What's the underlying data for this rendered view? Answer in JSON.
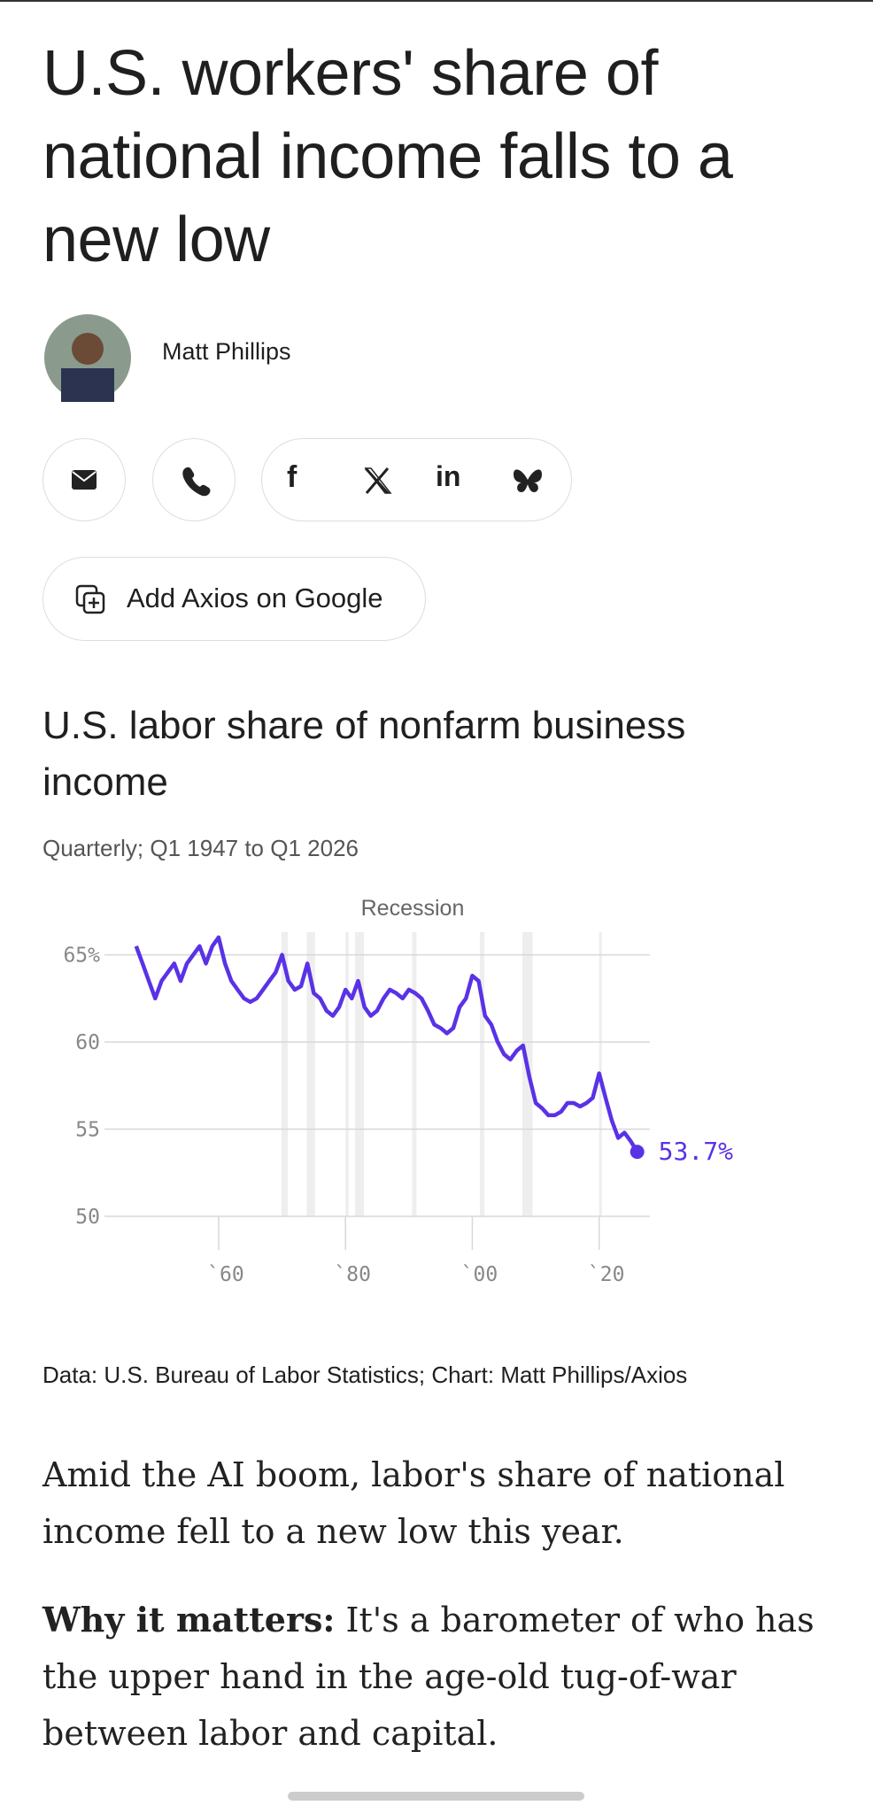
{
  "header": {
    "title": "U.S. workers' share of national income falls to a new low"
  },
  "byline": {
    "author": "Matt Phillips"
  },
  "share": {
    "facebook": "f",
    "linkedin": "in"
  },
  "buttons": {
    "add_google": "Add Axios on Google"
  },
  "chart_data": {
    "type": "line",
    "title": "U.S. labor share of nonfarm business income",
    "subtitle": "Quarterly; Q1 1947 to Q1 2026",
    "x": [
      1947,
      1948,
      1949,
      1950,
      1951,
      1952,
      1953,
      1954,
      1955,
      1956,
      1957,
      1958,
      1959,
      1960,
      1961,
      1962,
      1963,
      1964,
      1965,
      1966,
      1967,
      1968,
      1969,
      1970,
      1971,
      1972,
      1973,
      1974,
      1975,
      1976,
      1977,
      1978,
      1979,
      1980,
      1981,
      1982,
      1983,
      1984,
      1985,
      1986,
      1987,
      1988,
      1989,
      1990,
      1991,
      1992,
      1993,
      1994,
      1995,
      1996,
      1997,
      1998,
      1999,
      2000,
      2001,
      2002,
      2003,
      2004,
      2005,
      2006,
      2007,
      2008,
      2009,
      2010,
      2011,
      2012,
      2013,
      2014,
      2015,
      2016,
      2017,
      2018,
      2019,
      2020,
      2021,
      2022,
      2023,
      2024,
      2025,
      2026
    ],
    "values": [
      65.5,
      64.5,
      63.5,
      62.5,
      63.5,
      64.0,
      64.5,
      63.5,
      64.5,
      65.0,
      65.5,
      64.5,
      65.5,
      66.0,
      64.5,
      63.5,
      63.0,
      62.5,
      62.3,
      62.5,
      63.0,
      63.5,
      64.0,
      65.0,
      63.5,
      63.0,
      63.2,
      64.5,
      62.8,
      62.5,
      61.8,
      61.5,
      62.0,
      63.0,
      62.5,
      63.5,
      62.0,
      61.5,
      61.8,
      62.5,
      63.0,
      62.8,
      62.5,
      63.0,
      62.8,
      62.5,
      61.8,
      61.0,
      60.8,
      60.5,
      60.8,
      62.0,
      62.5,
      63.8,
      63.5,
      61.5,
      61.0,
      60.0,
      59.3,
      59.0,
      59.5,
      59.8,
      58.0,
      56.5,
      56.2,
      55.8,
      55.8,
      56.0,
      56.5,
      56.5,
      56.3,
      56.5,
      56.8,
      58.2,
      56.8,
      55.5,
      54.5,
      54.8,
      54.3,
      53.7
    ],
    "value_labels": [
      null,
      null,
      null,
      null,
      null,
      null,
      null,
      null,
      null,
      null,
      null,
      null,
      null,
      null,
      null,
      null,
      null,
      null,
      null,
      null,
      null,
      null,
      null,
      null,
      null,
      null,
      null,
      null,
      null,
      null,
      null,
      null,
      null,
      null,
      null,
      null,
      null,
      null,
      null,
      null,
      null,
      null,
      null,
      null,
      null,
      null,
      null,
      null,
      null,
      null,
      null,
      null,
      null,
      null,
      null,
      null,
      null,
      null,
      null,
      null,
      null,
      null,
      null,
      null,
      null,
      null,
      null,
      null,
      null,
      null,
      null,
      null,
      null,
      null,
      null,
      null,
      null,
      null,
      null,
      "53.7%"
    ],
    "color": "#5a32e6",
    "xlim": [
      1942,
      2028
    ],
    "ylim": [
      50,
      66.3
    ],
    "xticks": [
      {
        "value": 1960,
        "label": "`60"
      },
      {
        "value": 1980,
        "label": "`80"
      },
      {
        "value": 2000,
        "label": "`00"
      },
      {
        "value": 2020,
        "label": "`20"
      }
    ],
    "yticks": [
      50,
      55,
      60,
      {
        "value": 65,
        "label": "65%"
      }
    ],
    "grid": true,
    "recession_label": "Recession",
    "recessions": [
      [
        1969.9,
        1970.9
      ],
      [
        1973.9,
        1975.2
      ],
      [
        1980.0,
        1980.5
      ],
      [
        1981.5,
        1982.9
      ],
      [
        1990.5,
        1991.2
      ],
      [
        2001.2,
        2001.9
      ],
      [
        2007.9,
        2009.5
      ],
      [
        2020.0,
        2020.4
      ]
    ],
    "source": "Data: U.S. Bureau of Labor Statistics; Chart: Matt Phillips/Axios"
  },
  "body": {
    "paragraphs": [
      "Amid the AI boom, labor's share of national income fell to a new low this year."
    ],
    "why": {
      "lead": "Why it matters:",
      "text": " It's a barometer of who has the upper hand in the age-old tug-of-war between labor and capital."
    }
  }
}
